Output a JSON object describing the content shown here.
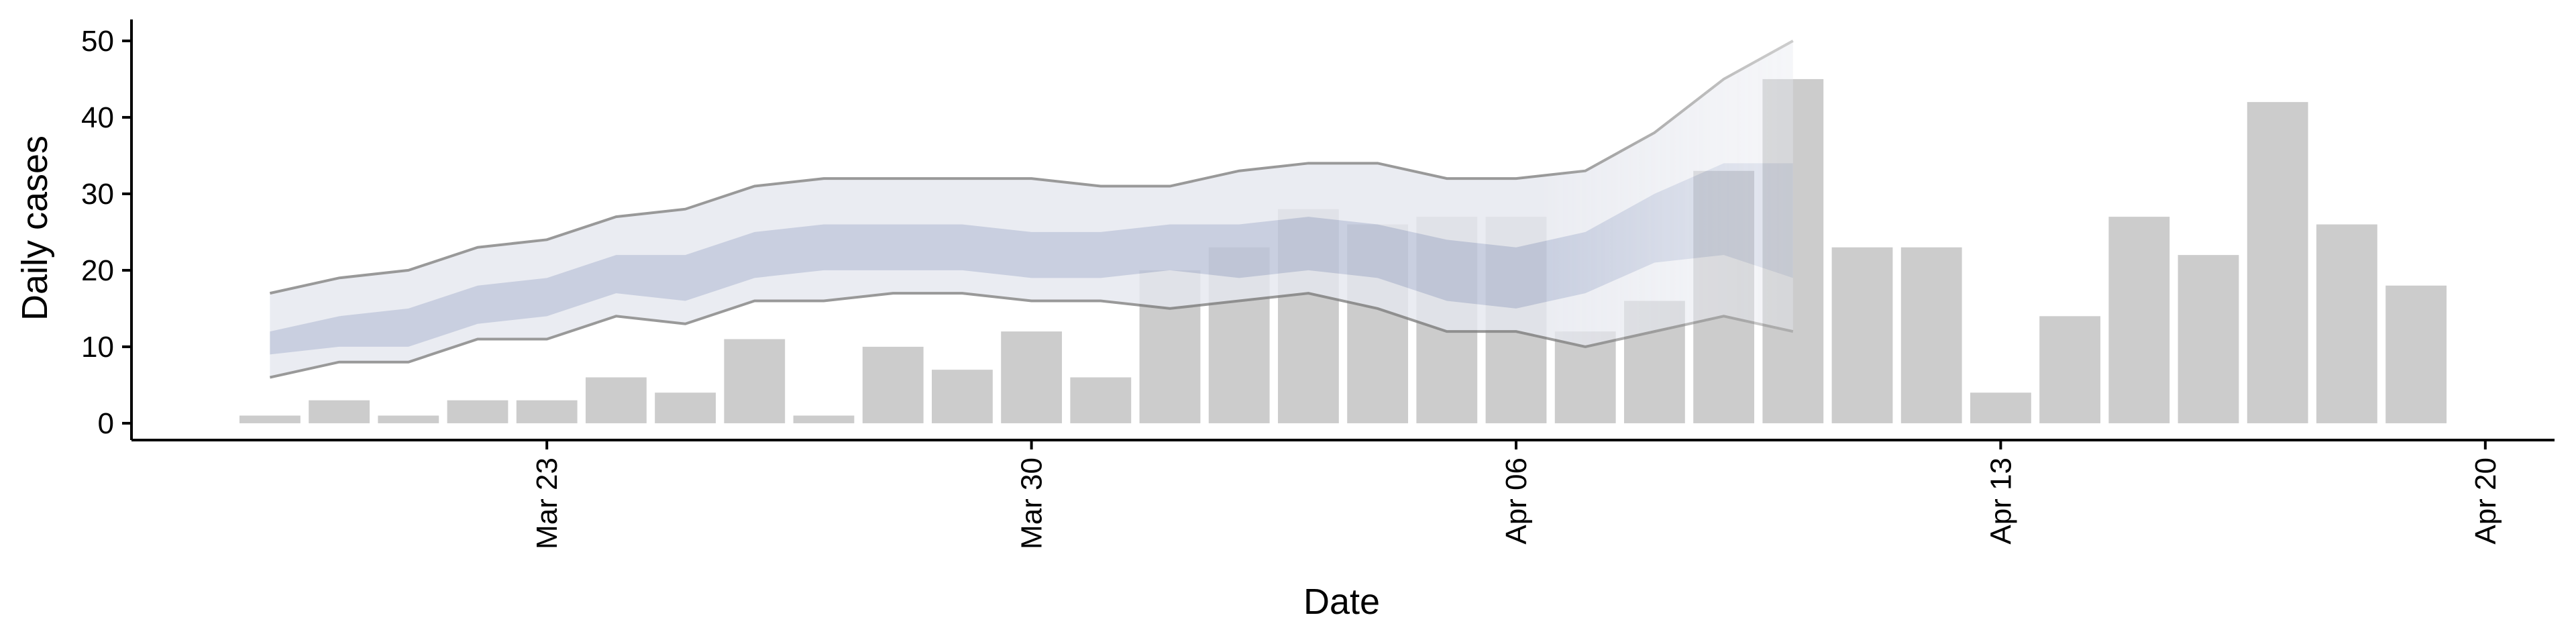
{
  "chart_data": {
    "type": "bar",
    "x_label": "Date",
    "y_label": "Daily cases",
    "categories": [
      "Mar 19",
      "Mar 20",
      "Mar 21",
      "Mar 22",
      "Mar 23",
      "Mar 24",
      "Mar 25",
      "Mar 26",
      "Mar 27",
      "Mar 28",
      "Mar 29",
      "Mar 30",
      "Mar 31",
      "Apr 01",
      "Apr 02",
      "Apr 03",
      "Apr 04",
      "Apr 05",
      "Apr 06",
      "Apr 07",
      "Apr 08",
      "Apr 09",
      "Apr 10",
      "Apr 11",
      "Apr 12",
      "Apr 13",
      "Apr 14",
      "Apr 15",
      "Apr 16",
      "Apr 17",
      "Apr 18",
      "Apr 19"
    ],
    "values": [
      1,
      3,
      1,
      3,
      3,
      6,
      4,
      11,
      1,
      10,
      7,
      12,
      6,
      20,
      23,
      28,
      26,
      27,
      27,
      12,
      16,
      33,
      45,
      23,
      23,
      4,
      14,
      27,
      22,
      42,
      26,
      18
    ],
    "color": "#cccccc",
    "band_outer": {
      "color": "#e6e8ef",
      "line_color": "#808080",
      "upper": [
        17,
        19,
        20,
        23,
        24,
        27,
        28,
        31,
        32,
        32,
        32,
        32,
        31,
        31,
        33,
        34,
        34,
        32,
        32,
        33,
        38,
        45,
        50,
        null,
        null,
        null,
        null,
        null,
        null,
        null,
        null,
        null
      ],
      "lower": [
        6,
        8,
        8,
        11,
        11,
        14,
        13,
        16,
        16,
        17,
        17,
        16,
        16,
        15,
        16,
        17,
        15,
        12,
        12,
        10,
        12,
        14,
        12,
        null,
        null,
        null,
        null,
        null,
        null,
        null,
        null,
        null
      ]
    },
    "band_inner": {
      "color": "#bcc4d9",
      "upper": [
        12,
        14,
        15,
        18,
        19,
        22,
        22,
        25,
        26,
        26,
        26,
        25,
        25,
        26,
        26,
        27,
        26,
        24,
        23,
        25,
        30,
        34,
        34,
        null,
        null,
        null,
        null,
        null,
        null,
        null,
        null,
        null
      ],
      "lower": [
        9,
        10,
        10,
        13,
        14,
        17,
        16,
        19,
        20,
        20,
        20,
        19,
        19,
        20,
        19,
        20,
        19,
        16,
        15,
        17,
        21,
        22,
        19,
        null,
        null,
        null,
        null,
        null,
        null,
        null,
        null,
        null
      ]
    },
    "xlim": [
      "Mar 17",
      "Apr 21"
    ],
    "xticks": [
      "Mar 23",
      "Mar 30",
      "Apr 06",
      "Apr 13",
      "Apr 20"
    ],
    "ylim": [
      -2.2,
      52.8
    ],
    "yticks": [
      0,
      10,
      20,
      30,
      40,
      50
    ],
    "grid": false
  }
}
